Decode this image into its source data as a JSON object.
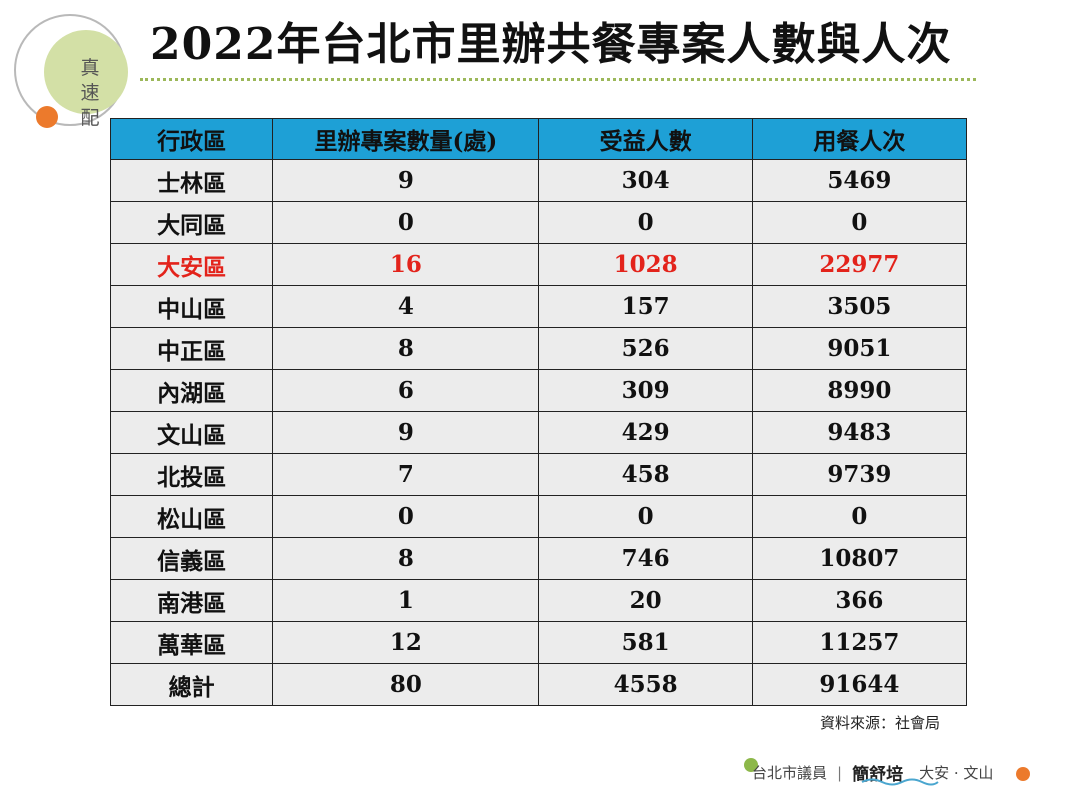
{
  "logo": {
    "chars": [
      "真",
      "速",
      "配"
    ]
  },
  "title": "2022年台北市里辦共餐專案人數與人次",
  "table": {
    "headers": [
      "行政區",
      "里辦專案數量(處)",
      "受益人數",
      "用餐人次"
    ],
    "rows": [
      [
        "士林區",
        "9",
        "304",
        "5469"
      ],
      [
        "大同區",
        "0",
        "0",
        "0"
      ],
      [
        "大安區",
        "16",
        "1028",
        "22977"
      ],
      [
        "中山區",
        "4",
        "157",
        "3505"
      ],
      [
        "中正區",
        "8",
        "526",
        "9051"
      ],
      [
        "內湖區",
        "6",
        "309",
        "8990"
      ],
      [
        "文山區",
        "9",
        "429",
        "9483"
      ],
      [
        "北投區",
        "7",
        "458",
        "9739"
      ],
      [
        "松山區",
        "0",
        "0",
        "0"
      ],
      [
        "信義區",
        "8",
        "746",
        "10807"
      ],
      [
        "南港區",
        "1",
        "20",
        "366"
      ],
      [
        "萬華區",
        "12",
        "581",
        "11257"
      ],
      [
        "總計",
        "80",
        "4558",
        "91644"
      ]
    ],
    "highlight_color": "#e3231b",
    "header_color": "#1ea0d6"
  },
  "source": "資料來源：社會局",
  "footer": {
    "role": "台北市議員",
    "separator": "|",
    "name": "簡舒培",
    "districts": "大安 · 文山"
  }
}
